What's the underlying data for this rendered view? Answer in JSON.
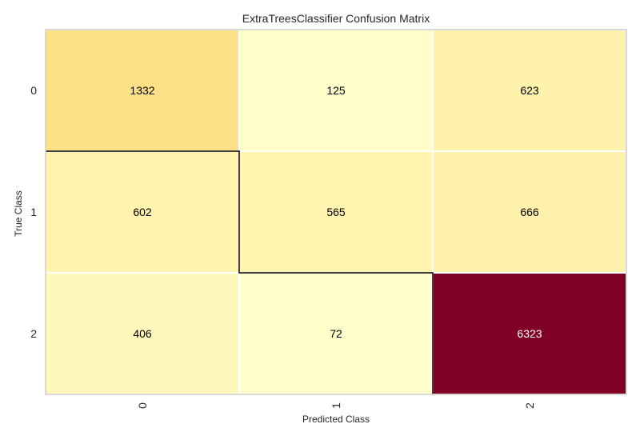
{
  "chart_data": {
    "type": "heatmap",
    "title": "ExtraTreesClassifier Confusion Matrix",
    "xlabel": "Predicted Class",
    "ylabel": "True Class",
    "x_categories": [
      "0",
      "1",
      "2"
    ],
    "y_categories": [
      "0",
      "1",
      "2"
    ],
    "values": [
      [
        1332,
        125,
        623
      ],
      [
        602,
        565,
        666
      ],
      [
        406,
        72,
        6323
      ]
    ],
    "colorscale": "YlOrRd",
    "diagonal_highlight": true,
    "grid": false
  }
}
